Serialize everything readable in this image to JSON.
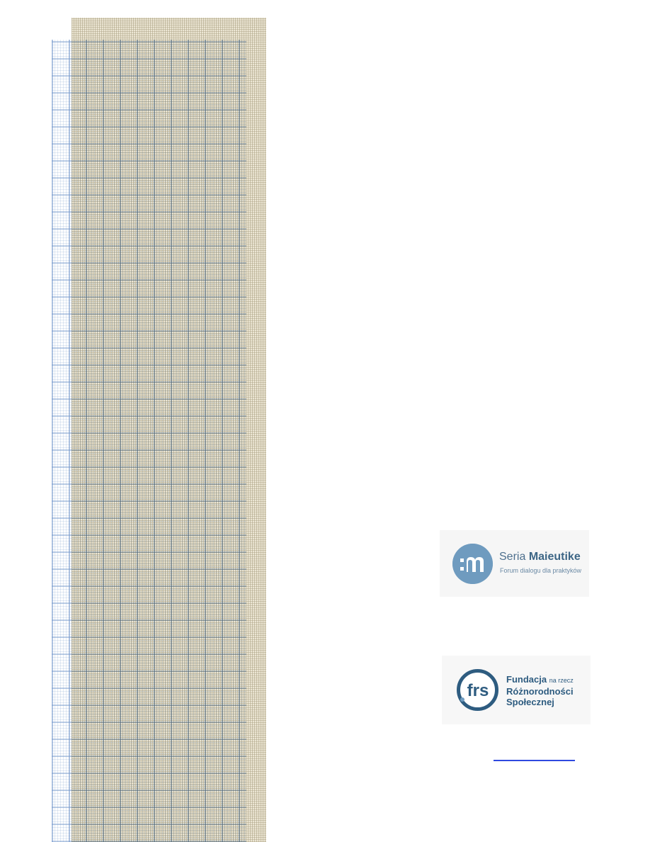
{
  "logos": {
    "maieutike": {
      "title_regular": "Seria",
      "title_bold": "Maieutike",
      "subtitle": "Forum dialogu dla praktyków",
      "mark_letter": "m",
      "color": "#6f9bbf"
    },
    "frs": {
      "mark_text": "frs",
      "line1_bold": "Fundacja",
      "line1_small": "na rzecz",
      "line2": "Różnorodności",
      "line3": "Społecznej",
      "color": "#2e5c80"
    }
  },
  "link": {
    "text": ""
  },
  "colors": {
    "pattern_tan": "#ece6d4",
    "pattern_blue": "#789bcd",
    "link": "#2f49e0"
  }
}
